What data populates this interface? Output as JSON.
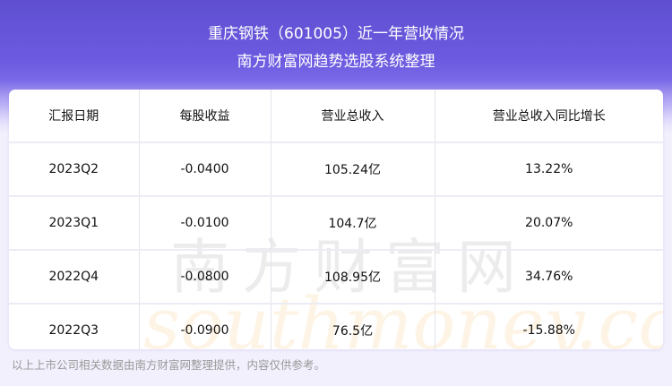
{
  "header": {
    "title": "重庆钢铁（601005）近一年营收情况",
    "subtitle": "南方财富网趋势选股系统整理"
  },
  "table": {
    "columns": [
      "汇报日期",
      "每股收益",
      "营业总收入",
      "营业总收入同比增长"
    ],
    "rows": [
      [
        "2023Q2",
        "-0.0400",
        "105.24亿",
        "13.22%"
      ],
      [
        "2023Q1",
        "-0.0100",
        "104.7亿",
        "20.07%"
      ],
      [
        "2022Q4",
        "-0.0800",
        "108.95亿",
        "34.76%"
      ],
      [
        "2022Q3",
        "-0.0900",
        "76.5亿",
        "-15.88%"
      ]
    ]
  },
  "watermark": {
    "cn": "南方财富网",
    "en": "southmoney.com"
  },
  "footer": "以上上市公司相关数据由南方财富网整理提供，内容仅供参考。",
  "colors": {
    "header": "#6c5ae0",
    "background": "#f2f0fd"
  }
}
